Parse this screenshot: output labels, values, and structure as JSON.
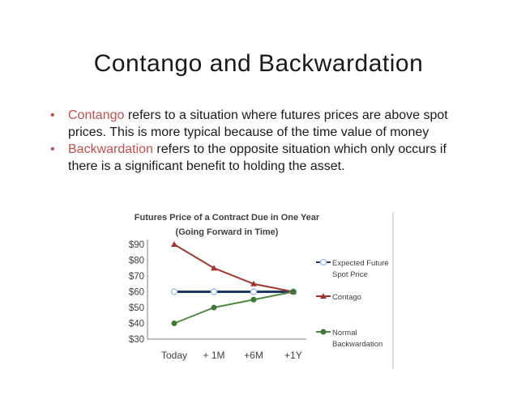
{
  "slide": {
    "title": "Contango and Backwardation",
    "bullets": [
      {
        "term": "Contango",
        "text": " refers to a situation where futures prices are above spot prices. This is more typical because of the time value of money"
      },
      {
        "term": "Backwardation",
        "text": " refers to the opposite situation which only occurs if there is a significant benefit to holding the asset."
      }
    ],
    "bullet_glyph": "•",
    "accent_color": "#c0504d"
  },
  "chart_data": {
    "type": "line",
    "title_line1": "Futures Price of a Contract Due in One Year",
    "title_line2": "(Going Forward in Time)",
    "categories": [
      "Today",
      "+ 1M",
      "+6M",
      "+1Y"
    ],
    "ylim": [
      30,
      90
    ],
    "yticks": [
      30,
      40,
      50,
      60,
      70,
      80,
      90
    ],
    "ytick_labels": [
      "$30",
      "$40",
      "$50",
      "$60",
      "$70",
      "$80",
      "$90"
    ],
    "legend_position": "right",
    "series": [
      {
        "name_lines": [
          "Expected Future",
          "Spot Price"
        ],
        "values": [
          60,
          60,
          60,
          60
        ],
        "color": "#1f3864",
        "marker": "circle-hollow",
        "marker_color": "#9dc3e6"
      },
      {
        "name_lines": [
          "Contago"
        ],
        "values": [
          90,
          75,
          65,
          60
        ],
        "color": "#a0362f",
        "marker": "triangle",
        "marker_color": "#a0362f"
      },
      {
        "name_lines": [
          "Normal",
          "Backwardation"
        ],
        "values": [
          40,
          50,
          55,
          60
        ],
        "color": "#4f8a43",
        "marker": "circle",
        "marker_color": "#3e7a34"
      }
    ]
  }
}
